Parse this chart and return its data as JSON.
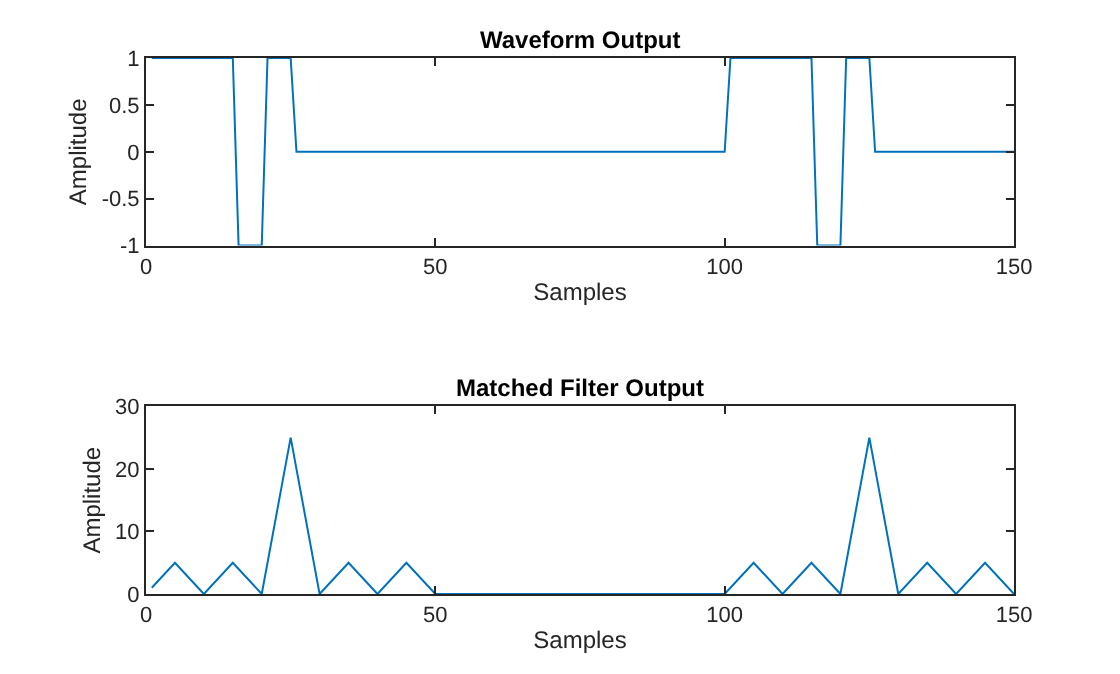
{
  "chart_data": [
    {
      "type": "line",
      "title": "Waveform Output",
      "xlabel": "Samples",
      "ylabel": "Amplitude",
      "series": [
        {
          "color": "#0072bd",
          "x": [
            1,
            15,
            16,
            20,
            21,
            25,
            26,
            100,
            101,
            115,
            116,
            120,
            121,
            125,
            126,
            150
          ],
          "values": [
            1,
            1,
            -1,
            -1,
            1,
            1,
            0,
            0,
            1,
            1,
            -1,
            -1,
            1,
            1,
            0,
            0
          ]
        }
      ],
      "xlim": [
        0,
        150
      ],
      "xticks": [
        0,
        50,
        100,
        150
      ],
      "ylim": [
        -1,
        1
      ],
      "yticks": [
        -1,
        -0.5,
        0,
        0.5,
        1
      ]
    },
    {
      "type": "line",
      "title": "Matched Filter Output",
      "xlabel": "Samples",
      "ylabel": "Amplitude",
      "series": [
        {
          "color": "#0072bd",
          "x": [
            1,
            5,
            10,
            15,
            20,
            25,
            30,
            35,
            40,
            45,
            50,
            100,
            105,
            110,
            115,
            120,
            125,
            130,
            135,
            140,
            145,
            150
          ],
          "values": [
            1,
            5,
            0,
            5,
            0,
            25,
            0,
            5,
            0,
            5,
            0,
            0,
            5,
            0,
            5,
            0,
            25,
            0,
            5,
            0,
            5,
            0
          ]
        }
      ],
      "xlim": [
        0,
        150
      ],
      "xticks": [
        0,
        50,
        100,
        150
      ],
      "ylim": [
        0,
        30
      ],
      "yticks": [
        0,
        10,
        20,
        30
      ]
    }
  ]
}
